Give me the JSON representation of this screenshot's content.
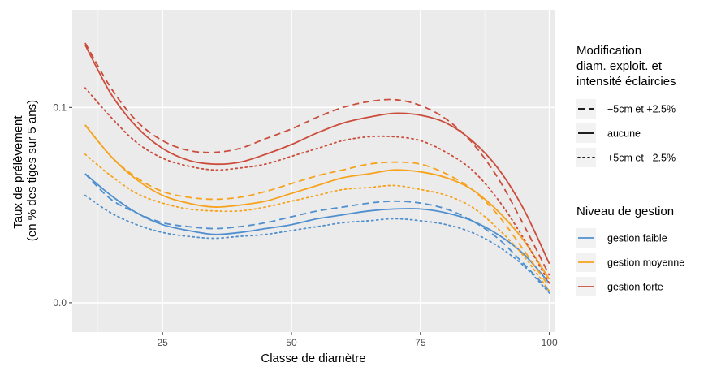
{
  "chart_data": {
    "type": "line",
    "xlabel": "Classe de diamètre",
    "ylabel": [
      "Taux de prélèvement",
      "(en % des tiges sur 5 ans)"
    ],
    "xlim": [
      7.5,
      101
    ],
    "ylim": [
      -0.015,
      0.15
    ],
    "x_ticks": [
      25,
      50,
      75,
      100
    ],
    "y_ticks": [
      0.0,
      0.1
    ],
    "x_tick_labels": [
      "25",
      "50",
      "75",
      "100"
    ],
    "y_tick_labels": [
      "0.0",
      "0.1"
    ],
    "grid": true,
    "legend_position": "right",
    "x": [
      10,
      15,
      20,
      25,
      30,
      35,
      40,
      45,
      50,
      55,
      60,
      65,
      70,
      75,
      80,
      85,
      90,
      95,
      100
    ],
    "legend_linetype": {
      "title": [
        "Modification",
        "diam. exploit. et",
        "intensité éclaircies"
      ],
      "items": [
        {
          "key": "minus5",
          "label": "−5cm et +2.5%",
          "dash": "dashed"
        },
        {
          "key": "none",
          "label": "aucune",
          "dash": "solid"
        },
        {
          "key": "plus5",
          "label": "+5cm et −2.5%",
          "dash": "dotted"
        }
      ]
    },
    "legend_color": {
      "title": "Niveau de gestion",
      "items": [
        {
          "key": "faible",
          "label": "gestion faible",
          "color": "#4f8fcf"
        },
        {
          "key": "moyenne",
          "label": "gestion moyenne",
          "color": "#f7a21b"
        },
        {
          "key": "forte",
          "label": "gestion forte",
          "color": "#cc4c3b"
        }
      ]
    },
    "series": [
      {
        "management": "faible",
        "modification": "minus5",
        "values": [
          0.066,
          0.053,
          0.046,
          0.041,
          0.039,
          0.038,
          0.039,
          0.041,
          0.044,
          0.047,
          0.049,
          0.051,
          0.052,
          0.051,
          0.048,
          0.042,
          0.033,
          0.02,
          0.006
        ]
      },
      {
        "management": "faible",
        "modification": "none",
        "values": [
          0.066,
          0.055,
          0.046,
          0.04,
          0.037,
          0.035,
          0.036,
          0.038,
          0.04,
          0.043,
          0.045,
          0.047,
          0.048,
          0.048,
          0.046,
          0.042,
          0.035,
          0.025,
          0.01
        ]
      },
      {
        "management": "faible",
        "modification": "plus5",
        "values": [
          0.055,
          0.046,
          0.04,
          0.036,
          0.034,
          0.033,
          0.034,
          0.035,
          0.037,
          0.039,
          0.041,
          0.042,
          0.043,
          0.042,
          0.04,
          0.036,
          0.029,
          0.019,
          0.005
        ]
      },
      {
        "management": "moyenne",
        "modification": "minus5",
        "values": [
          0.091,
          0.075,
          0.064,
          0.057,
          0.054,
          0.053,
          0.054,
          0.057,
          0.061,
          0.065,
          0.068,
          0.071,
          0.072,
          0.071,
          0.066,
          0.058,
          0.045,
          0.027,
          0.008
        ]
      },
      {
        "management": "moyenne",
        "modification": "none",
        "values": [
          0.091,
          0.075,
          0.063,
          0.055,
          0.051,
          0.049,
          0.05,
          0.052,
          0.056,
          0.06,
          0.064,
          0.066,
          0.068,
          0.067,
          0.064,
          0.058,
          0.047,
          0.032,
          0.012
        ]
      },
      {
        "management": "moyenne",
        "modification": "plus5",
        "values": [
          0.076,
          0.065,
          0.056,
          0.051,
          0.048,
          0.047,
          0.047,
          0.049,
          0.052,
          0.055,
          0.058,
          0.059,
          0.06,
          0.058,
          0.055,
          0.049,
          0.038,
          0.024,
          0.006
        ]
      },
      {
        "management": "forte",
        "modification": "minus5",
        "values": [
          0.133,
          0.11,
          0.093,
          0.083,
          0.078,
          0.077,
          0.079,
          0.084,
          0.089,
          0.095,
          0.1,
          0.103,
          0.104,
          0.101,
          0.094,
          0.082,
          0.064,
          0.04,
          0.014
        ]
      },
      {
        "management": "forte",
        "modification": "none",
        "values": [
          0.132,
          0.107,
          0.09,
          0.079,
          0.073,
          0.071,
          0.072,
          0.076,
          0.081,
          0.087,
          0.092,
          0.095,
          0.097,
          0.096,
          0.092,
          0.083,
          0.069,
          0.048,
          0.02
        ]
      },
      {
        "management": "forte",
        "modification": "plus5",
        "values": [
          0.11,
          0.095,
          0.082,
          0.074,
          0.07,
          0.068,
          0.069,
          0.071,
          0.075,
          0.079,
          0.083,
          0.085,
          0.085,
          0.083,
          0.077,
          0.068,
          0.053,
          0.033,
          0.01
        ]
      }
    ]
  }
}
